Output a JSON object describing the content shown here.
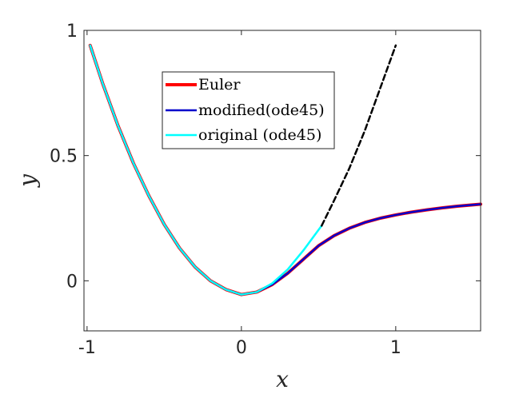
{
  "chart_data": {
    "type": "line",
    "xlabel": "x",
    "ylabel": "y",
    "xlim": [
      -1.02,
      1.55
    ],
    "ylim": [
      -0.2,
      1.0
    ],
    "xticks": [
      {
        "value": -1,
        "label": "-1"
      },
      {
        "value": 0,
        "label": "0"
      },
      {
        "value": 1,
        "label": "1"
      }
    ],
    "yticks": [
      {
        "value": 0,
        "label": "0"
      },
      {
        "value": 0.5,
        "label": "0.5"
      },
      {
        "value": 1,
        "label": "1"
      }
    ],
    "grid": false,
    "legend_position": "top-left",
    "series": [
      {
        "name": "Euler",
        "color": "#ff0000",
        "style": "solid",
        "points": [
          [
            -0.98,
            0.94
          ],
          [
            -0.9,
            0.79
          ],
          [
            -0.8,
            0.62
          ],
          [
            -0.7,
            0.47
          ],
          [
            -0.6,
            0.34
          ],
          [
            -0.5,
            0.225
          ],
          [
            -0.4,
            0.13
          ],
          [
            -0.3,
            0.055
          ],
          [
            -0.2,
            0.0
          ],
          [
            -0.1,
            -0.035
          ],
          [
            0.0,
            -0.055
          ],
          [
            0.1,
            -0.045
          ],
          [
            0.2,
            -0.015
          ],
          [
            0.3,
            0.03
          ],
          [
            0.4,
            0.085
          ],
          [
            0.5,
            0.14
          ],
          [
            0.6,
            0.18
          ],
          [
            0.7,
            0.21
          ],
          [
            0.8,
            0.233
          ],
          [
            0.9,
            0.25
          ],
          [
            1.0,
            0.263
          ],
          [
            1.1,
            0.274
          ],
          [
            1.2,
            0.283
          ],
          [
            1.3,
            0.291
          ],
          [
            1.4,
            0.298
          ],
          [
            1.55,
            0.306
          ]
        ]
      },
      {
        "name": "modified(ode45)",
        "color": "#0000cc",
        "style": "solid",
        "points": [
          [
            -0.98,
            0.94
          ],
          [
            -0.9,
            0.79
          ],
          [
            -0.8,
            0.62
          ],
          [
            -0.7,
            0.47
          ],
          [
            -0.6,
            0.34
          ],
          [
            -0.5,
            0.225
          ],
          [
            -0.4,
            0.13
          ],
          [
            -0.3,
            0.055
          ],
          [
            -0.2,
            0.0
          ],
          [
            -0.1,
            -0.035
          ],
          [
            0.0,
            -0.055
          ],
          [
            0.1,
            -0.045
          ],
          [
            0.2,
            -0.015
          ],
          [
            0.3,
            0.03
          ],
          [
            0.4,
            0.085
          ],
          [
            0.5,
            0.14
          ],
          [
            0.6,
            0.18
          ],
          [
            0.7,
            0.21
          ],
          [
            0.8,
            0.233
          ],
          [
            0.9,
            0.25
          ],
          [
            1.0,
            0.263
          ],
          [
            1.1,
            0.274
          ],
          [
            1.2,
            0.283
          ],
          [
            1.3,
            0.291
          ],
          [
            1.4,
            0.298
          ],
          [
            1.55,
            0.306
          ]
        ]
      },
      {
        "name": "original (ode45)",
        "color": "#00ffff",
        "style": "solid",
        "points": [
          [
            -0.98,
            0.94
          ],
          [
            -0.9,
            0.79
          ],
          [
            -0.8,
            0.62
          ],
          [
            -0.7,
            0.47
          ],
          [
            -0.6,
            0.34
          ],
          [
            -0.5,
            0.225
          ],
          [
            -0.4,
            0.13
          ],
          [
            -0.3,
            0.055
          ],
          [
            -0.2,
            0.0
          ],
          [
            -0.1,
            -0.035
          ],
          [
            0.0,
            -0.055
          ],
          [
            0.1,
            -0.045
          ],
          [
            0.2,
            -0.01
          ],
          [
            0.3,
            0.045
          ],
          [
            0.4,
            0.12
          ],
          [
            0.52,
            0.22
          ]
        ]
      },
      {
        "name": "",
        "color": "#000000",
        "style": "dashed",
        "points": [
          [
            0.52,
            0.22
          ],
          [
            0.6,
            0.32
          ],
          [
            0.7,
            0.45
          ],
          [
            0.8,
            0.6
          ],
          [
            0.9,
            0.77
          ],
          [
            1.0,
            0.94
          ]
        ]
      }
    ]
  }
}
